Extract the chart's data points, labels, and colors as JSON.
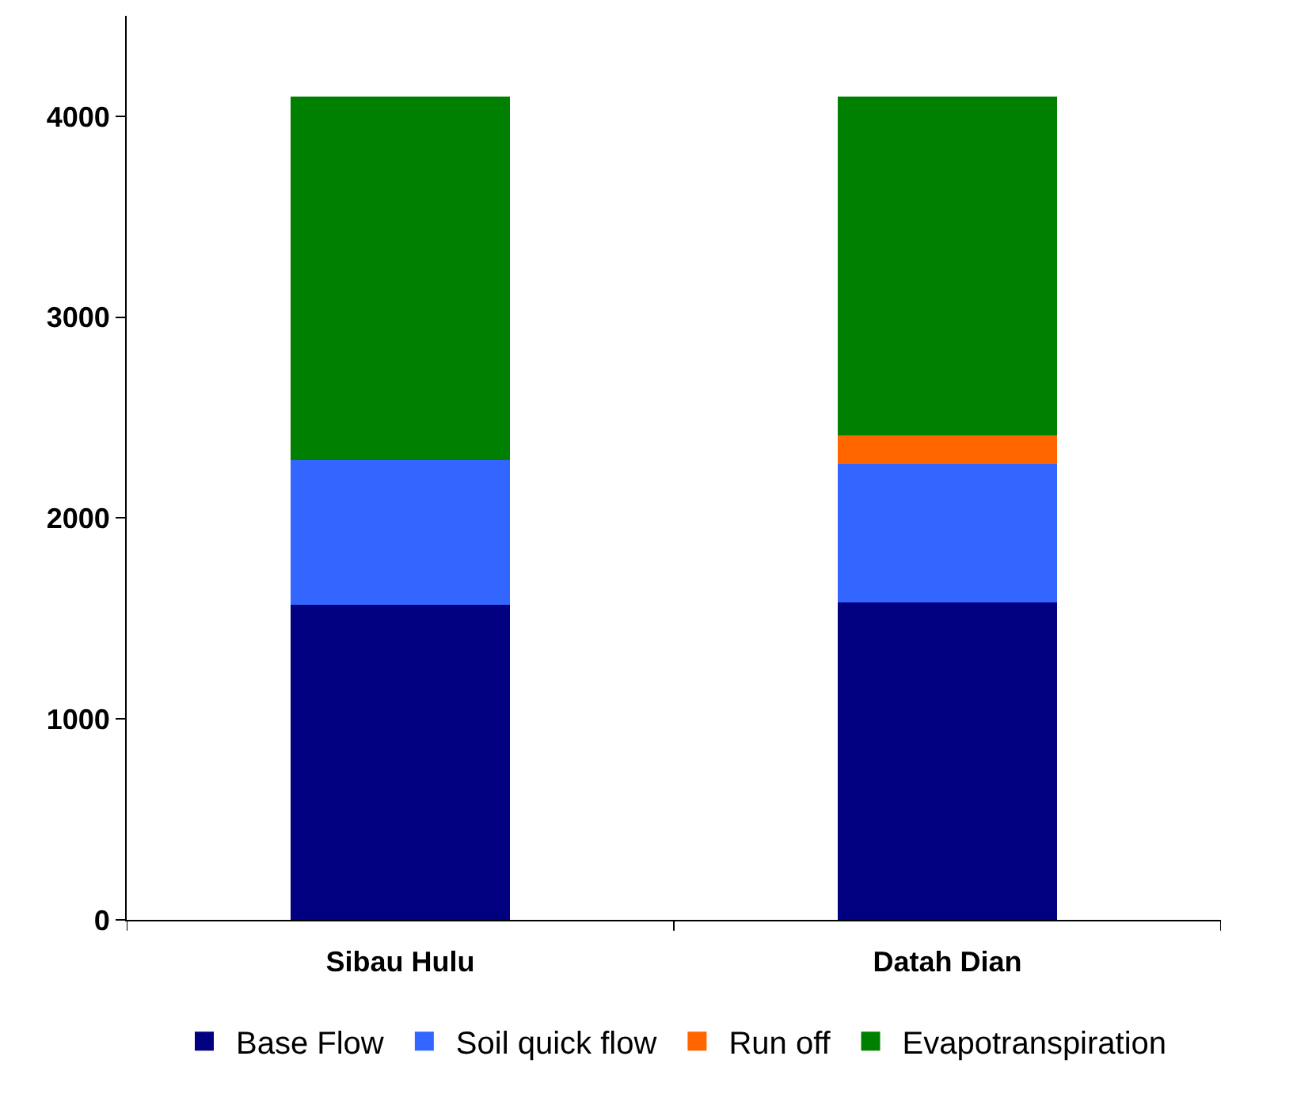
{
  "chart_data": {
    "type": "bar",
    "stacked": true,
    "categories": [
      "Sibau Hulu",
      "Datah Dian"
    ],
    "series": [
      {
        "name": "Base Flow",
        "color": "#000080",
        "values": [
          1570,
          1580
        ]
      },
      {
        "name": "Soil quick flow",
        "color": "#3366ff",
        "values": [
          720,
          690
        ]
      },
      {
        "name": "Run off",
        "color": "#ff6600",
        "values": [
          0,
          140
        ]
      },
      {
        "name": "Evapotranspiration",
        "color": "#008000",
        "values": [
          1810,
          1690
        ]
      }
    ],
    "ylim": [
      0,
      4500
    ],
    "yticks": [
      0,
      1000,
      2000,
      3000,
      4000
    ],
    "grid": false,
    "legend": "bottom"
  }
}
